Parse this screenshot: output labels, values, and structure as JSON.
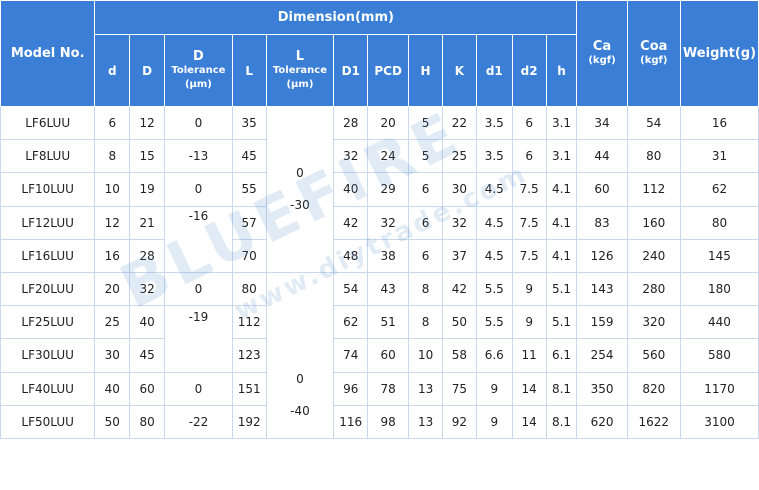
{
  "header": {
    "model": "Model No.",
    "dimension": "Dimension(mm)",
    "d": "d",
    "D": "D",
    "D_tol_top": "D",
    "D_tol_label": "Tolerance",
    "D_tol_unit": "(μm)",
    "L": "L",
    "L_tol_top": "L",
    "L_tol_label": "Tolerance",
    "L_tol_unit": "(μm)",
    "D1": "D1",
    "PCD": "PCD",
    "H": "H",
    "K": "K",
    "d1": "d1",
    "d2": "d2",
    "h": "h",
    "Ca": "Ca",
    "Ca_unit": "(kgf)",
    "Coa": "Coa",
    "Coa_unit": "(kgf)",
    "weight": "Weight(g)"
  },
  "rows": [
    {
      "model": "LF6LUU",
      "d": "6",
      "D": "12",
      "L": "35",
      "D1": "28",
      "PCD": "20",
      "H": "5",
      "K": "22",
      "d1": "3.5",
      "d2": "6",
      "h": "3.1",
      "Ca": "34",
      "Coa": "54",
      "weight": "16"
    },
    {
      "model": "LF8LUU",
      "d": "8",
      "D": "15",
      "L": "45",
      "D1": "32",
      "PCD": "24",
      "H": "5",
      "K": "25",
      "d1": "3.5",
      "d2": "6",
      "h": "3.1",
      "Ca": "44",
      "Coa": "80",
      "weight": "31"
    },
    {
      "model": "LF10LUU",
      "d": "10",
      "D": "19",
      "L": "55",
      "D1": "40",
      "PCD": "29",
      "H": "6",
      "K": "30",
      "d1": "4.5",
      "d2": "7.5",
      "h": "4.1",
      "Ca": "60",
      "Coa": "112",
      "weight": "62"
    },
    {
      "model": "LF12LUU",
      "d": "12",
      "D": "21",
      "L": "57",
      "D1": "42",
      "PCD": "32",
      "H": "6",
      "K": "32",
      "d1": "4.5",
      "d2": "7.5",
      "h": "4.1",
      "Ca": "83",
      "Coa": "160",
      "weight": "80"
    },
    {
      "model": "LF16LUU",
      "d": "16",
      "D": "28",
      "L": "70",
      "D1": "48",
      "PCD": "38",
      "H": "6",
      "K": "37",
      "d1": "4.5",
      "d2": "7.5",
      "h": "4.1",
      "Ca": "126",
      "Coa": "240",
      "weight": "145"
    },
    {
      "model": "LF20LUU",
      "d": "20",
      "D": "32",
      "L": "80",
      "D1": "54",
      "PCD": "43",
      "H": "8",
      "K": "42",
      "d1": "5.5",
      "d2": "9",
      "h": "5.1",
      "Ca": "143",
      "Coa": "280",
      "weight": "180"
    },
    {
      "model": "LF25LUU",
      "d": "25",
      "D": "40",
      "L": "112",
      "D1": "62",
      "PCD": "51",
      "H": "8",
      "K": "50",
      "d1": "5.5",
      "d2": "9",
      "h": "5.1",
      "Ca": "159",
      "Coa": "320",
      "weight": "440"
    },
    {
      "model": "LF30LUU",
      "d": "30",
      "D": "45",
      "L": "123",
      "D1": "74",
      "PCD": "60",
      "H": "10",
      "K": "58",
      "d1": "6.6",
      "d2": "11",
      "h": "6.1",
      "Ca": "254",
      "Coa": "560",
      "weight": "580"
    },
    {
      "model": "LF40LUU",
      "d": "40",
      "D": "60",
      "L": "151",
      "D1": "96",
      "PCD": "78",
      "H": "13",
      "K": "75",
      "d1": "9",
      "d2": "14",
      "h": "8.1",
      "Ca": "350",
      "Coa": "820",
      "weight": "1170"
    },
    {
      "model": "LF50LUU",
      "d": "50",
      "D": "80",
      "L": "192",
      "D1": "116",
      "PCD": "98",
      "H": "13",
      "K": "92",
      "d1": "9",
      "d2": "14",
      "h": "8.1",
      "Ca": "620",
      "Coa": "1622",
      "weight": "3100"
    }
  ],
  "D_tolerance": [
    {
      "upper": "0",
      "lower": "-13"
    },
    {
      "upper": "0",
      "lower": "-16"
    },
    {
      "upper": "0",
      "lower": "-19"
    },
    {
      "upper": "0",
      "lower": "-22"
    }
  ],
  "L_tolerance": [
    {
      "upper": "0",
      "lower": "-30"
    },
    {
      "upper": "0",
      "lower": "-40"
    }
  ],
  "watermark": {
    "brand": "BLUEFIRE",
    "url": "www.diytrade.com"
  },
  "colors": {
    "header_bg": "#3a7fd5",
    "header_text": "#ffffff",
    "border": "#c9d8ec"
  }
}
